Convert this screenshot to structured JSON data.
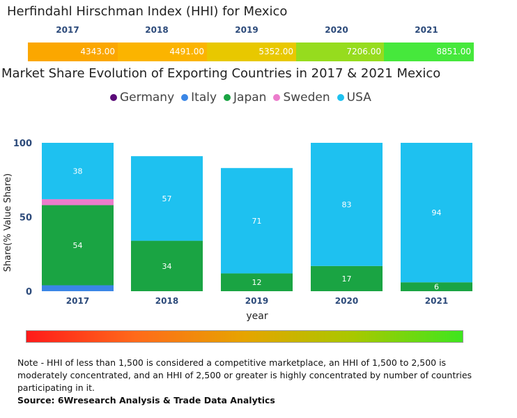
{
  "hhi": {
    "title": "Herfindahl Hirschman Index (HHI) for Mexico",
    "years": [
      "2017",
      "2018",
      "2019",
      "2020",
      "2021"
    ],
    "values": [
      "4343.00",
      "4491.00",
      "5352.00",
      "7206.00",
      "8851.00"
    ],
    "colors": [
      "#fba700",
      "#fbb400",
      "#e8c800",
      "#96dc1e",
      "#46e83c"
    ]
  },
  "chart_title": "Market Share Evolution of Exporting Countries in 2017 & 2021 Mexico",
  "legend": [
    {
      "label": "Germany",
      "color": "#5a0a78"
    },
    {
      "label": "Italy",
      "color": "#3a86e6"
    },
    {
      "label": "Japan",
      "color": "#1aa443"
    },
    {
      "label": "Sweden",
      "color": "#ec7ccc"
    },
    {
      "label": "USA",
      "color": "#1ec1f0"
    }
  ],
  "chart_data": {
    "type": "bar",
    "stacked": true,
    "title": "Market Share Evolution of Exporting Countries in 2017 & 2021 Mexico",
    "categories": [
      "2017",
      "2018",
      "2019",
      "2020",
      "2021"
    ],
    "xlabel": "year",
    "ylabel": "Share(% Value Share)",
    "ylim": [
      0,
      100
    ],
    "yticks": [
      "0",
      "50",
      "100"
    ],
    "series": [
      {
        "name": "Germany",
        "color": "#5a0a78",
        "values": [
          0,
          0,
          0,
          0,
          0
        ],
        "labels": [
          "",
          "",
          "",
          "",
          ""
        ]
      },
      {
        "name": "Italy",
        "color": "#3a86e6",
        "values": [
          4,
          0,
          0,
          0,
          0
        ],
        "labels": [
          "",
          "",
          "",
          "",
          ""
        ]
      },
      {
        "name": "Japan",
        "color": "#1aa443",
        "values": [
          54,
          34,
          12,
          17,
          6
        ],
        "labels": [
          "54",
          "34",
          "12",
          "17",
          "6"
        ]
      },
      {
        "name": "Sweden",
        "color": "#ec7ccc",
        "values": [
          4,
          0,
          0,
          0,
          0
        ],
        "labels": [
          "",
          "",
          "",
          "",
          ""
        ]
      },
      {
        "name": "USA",
        "color": "#1ec1f0",
        "values": [
          38,
          57,
          71,
          83,
          94
        ],
        "labels": [
          "38",
          "57",
          "71",
          "83",
          "94"
        ]
      }
    ]
  },
  "note": "Note - HHI of less than 1,500 is considered a competitive marketplace, an HHI of 1,500 to 2,500 is moderately concentrated, and an HHI of 2,500 or greater is highly concentrated by number of countries participating in it.",
  "source": "Source: 6Wresearch Analysis & Trade Data Analytics"
}
